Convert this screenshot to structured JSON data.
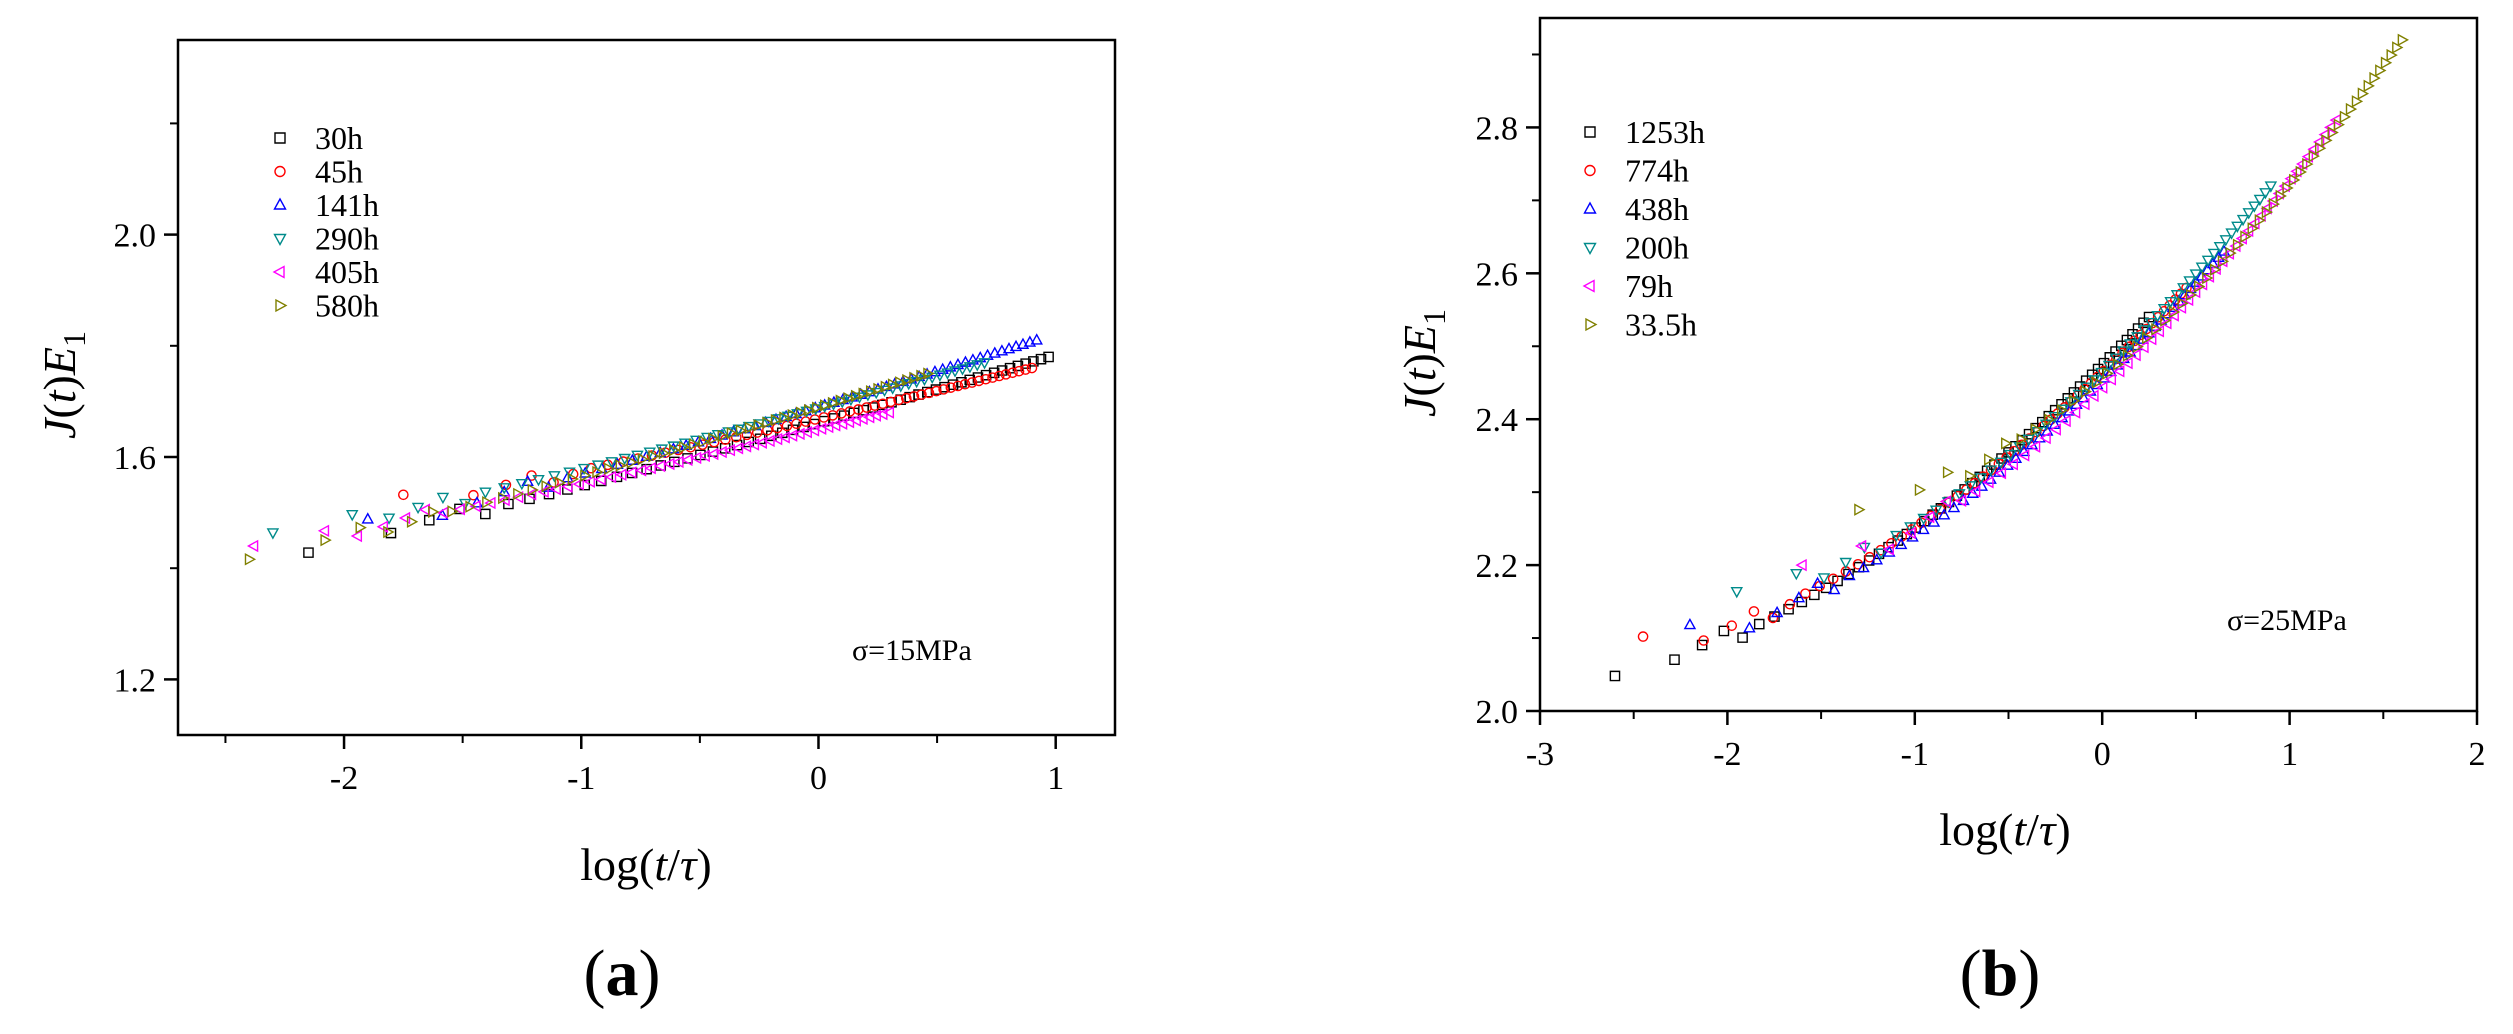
{
  "chart_data": [
    {
      "type": "scatter",
      "panel_label": "(a)",
      "panel_letter": "a",
      "xlabel": "log(t/τ)",
      "ylabel": "J(t)E1",
      "xlim": [
        -2.7,
        1.25
      ],
      "ylim": [
        1.1,
        2.35
      ],
      "xticks": [
        -2,
        -1,
        0,
        1
      ],
      "xtick_labels": [
        "-2",
        "-1",
        "0",
        "1"
      ],
      "yticks": [
        1.2,
        1.6,
        2.0
      ],
      "ytick_labels": [
        "1.2",
        "1.6",
        "2.0"
      ],
      "annotation": "σ=15MPa",
      "legend_position": "top-left",
      "series": [
        {
          "name": "30h",
          "marker": "square",
          "color": "#000000",
          "x_start": -2.15,
          "x_end": 0.97,
          "y_start": 1.44,
          "y_end": 1.78
        },
        {
          "name": "45h",
          "marker": "circle",
          "color": "#ff0000",
          "x_start": -1.75,
          "x_end": 0.9,
          "y_start": 1.52,
          "y_end": 1.76
        },
        {
          "name": "141h",
          "marker": "triangle-up",
          "color": "#0000ff",
          "x_start": -1.9,
          "x_end": 0.92,
          "y_start": 1.48,
          "y_end": 1.81
        },
        {
          "name": "290h",
          "marker": "triangle-down",
          "color": "#008b8b",
          "x_start": -2.3,
          "x_end": 0.7,
          "y_start": 1.46,
          "y_end": 1.77
        },
        {
          "name": "405h",
          "marker": "triangle-left",
          "color": "#ff00ff",
          "x_start": -2.38,
          "x_end": 0.3,
          "y_start": 1.44,
          "y_end": 1.68
        },
        {
          "name": "580h",
          "marker": "triangle-right",
          "color": "#808000",
          "x_start": -2.4,
          "x_end": 0.46,
          "y_start": 1.42,
          "y_end": 1.75
        }
      ]
    },
    {
      "type": "scatter",
      "panel_label": "(b)",
      "panel_letter": "b",
      "xlabel": "log(t/τ)",
      "ylabel": "J(t)E1",
      "xlim": [
        -3,
        2
      ],
      "ylim": [
        2.0,
        2.95
      ],
      "xticks": [
        -3,
        -2,
        -1,
        0,
        1,
        2
      ],
      "xtick_labels": [
        "-3",
        "-2",
        "-1",
        "0",
        "1",
        "2"
      ],
      "yticks": [
        2.0,
        2.2,
        2.4,
        2.6,
        2.8
      ],
      "ytick_labels": [
        "2.0",
        "2.2",
        "2.4",
        "2.6",
        "2.8"
      ],
      "annotation": "σ=25MPa",
      "legend_position": "top-left",
      "series": [
        {
          "name": "1253h",
          "marker": "square",
          "color": "#000000",
          "x_start": -2.6,
          "x_end": 0.25,
          "y_start": 2.06,
          "y_end": 2.54
        },
        {
          "name": "774h",
          "marker": "circle",
          "color": "#ff0000",
          "x_start": -2.45,
          "x_end": 0.45,
          "y_start": 2.09,
          "y_end": 2.58
        },
        {
          "name": "438h",
          "marker": "triangle-up",
          "color": "#0000ff",
          "x_start": -2.2,
          "x_end": 0.65,
          "y_start": 2.11,
          "y_end": 2.63
        },
        {
          "name": "200h",
          "marker": "triangle-down",
          "color": "#008b8b",
          "x_start": -1.95,
          "x_end": 0.9,
          "y_start": 2.16,
          "y_end": 2.72
        },
        {
          "name": "79h",
          "marker": "triangle-left",
          "color": "#ff00ff",
          "x_start": -1.6,
          "x_end": 1.25,
          "y_start": 2.2,
          "y_end": 2.81
        },
        {
          "name": "33.5h",
          "marker": "triangle-right",
          "color": "#808000",
          "x_start": -1.3,
          "x_end": 1.6,
          "y_start": 2.28,
          "y_end": 2.92
        }
      ]
    }
  ]
}
